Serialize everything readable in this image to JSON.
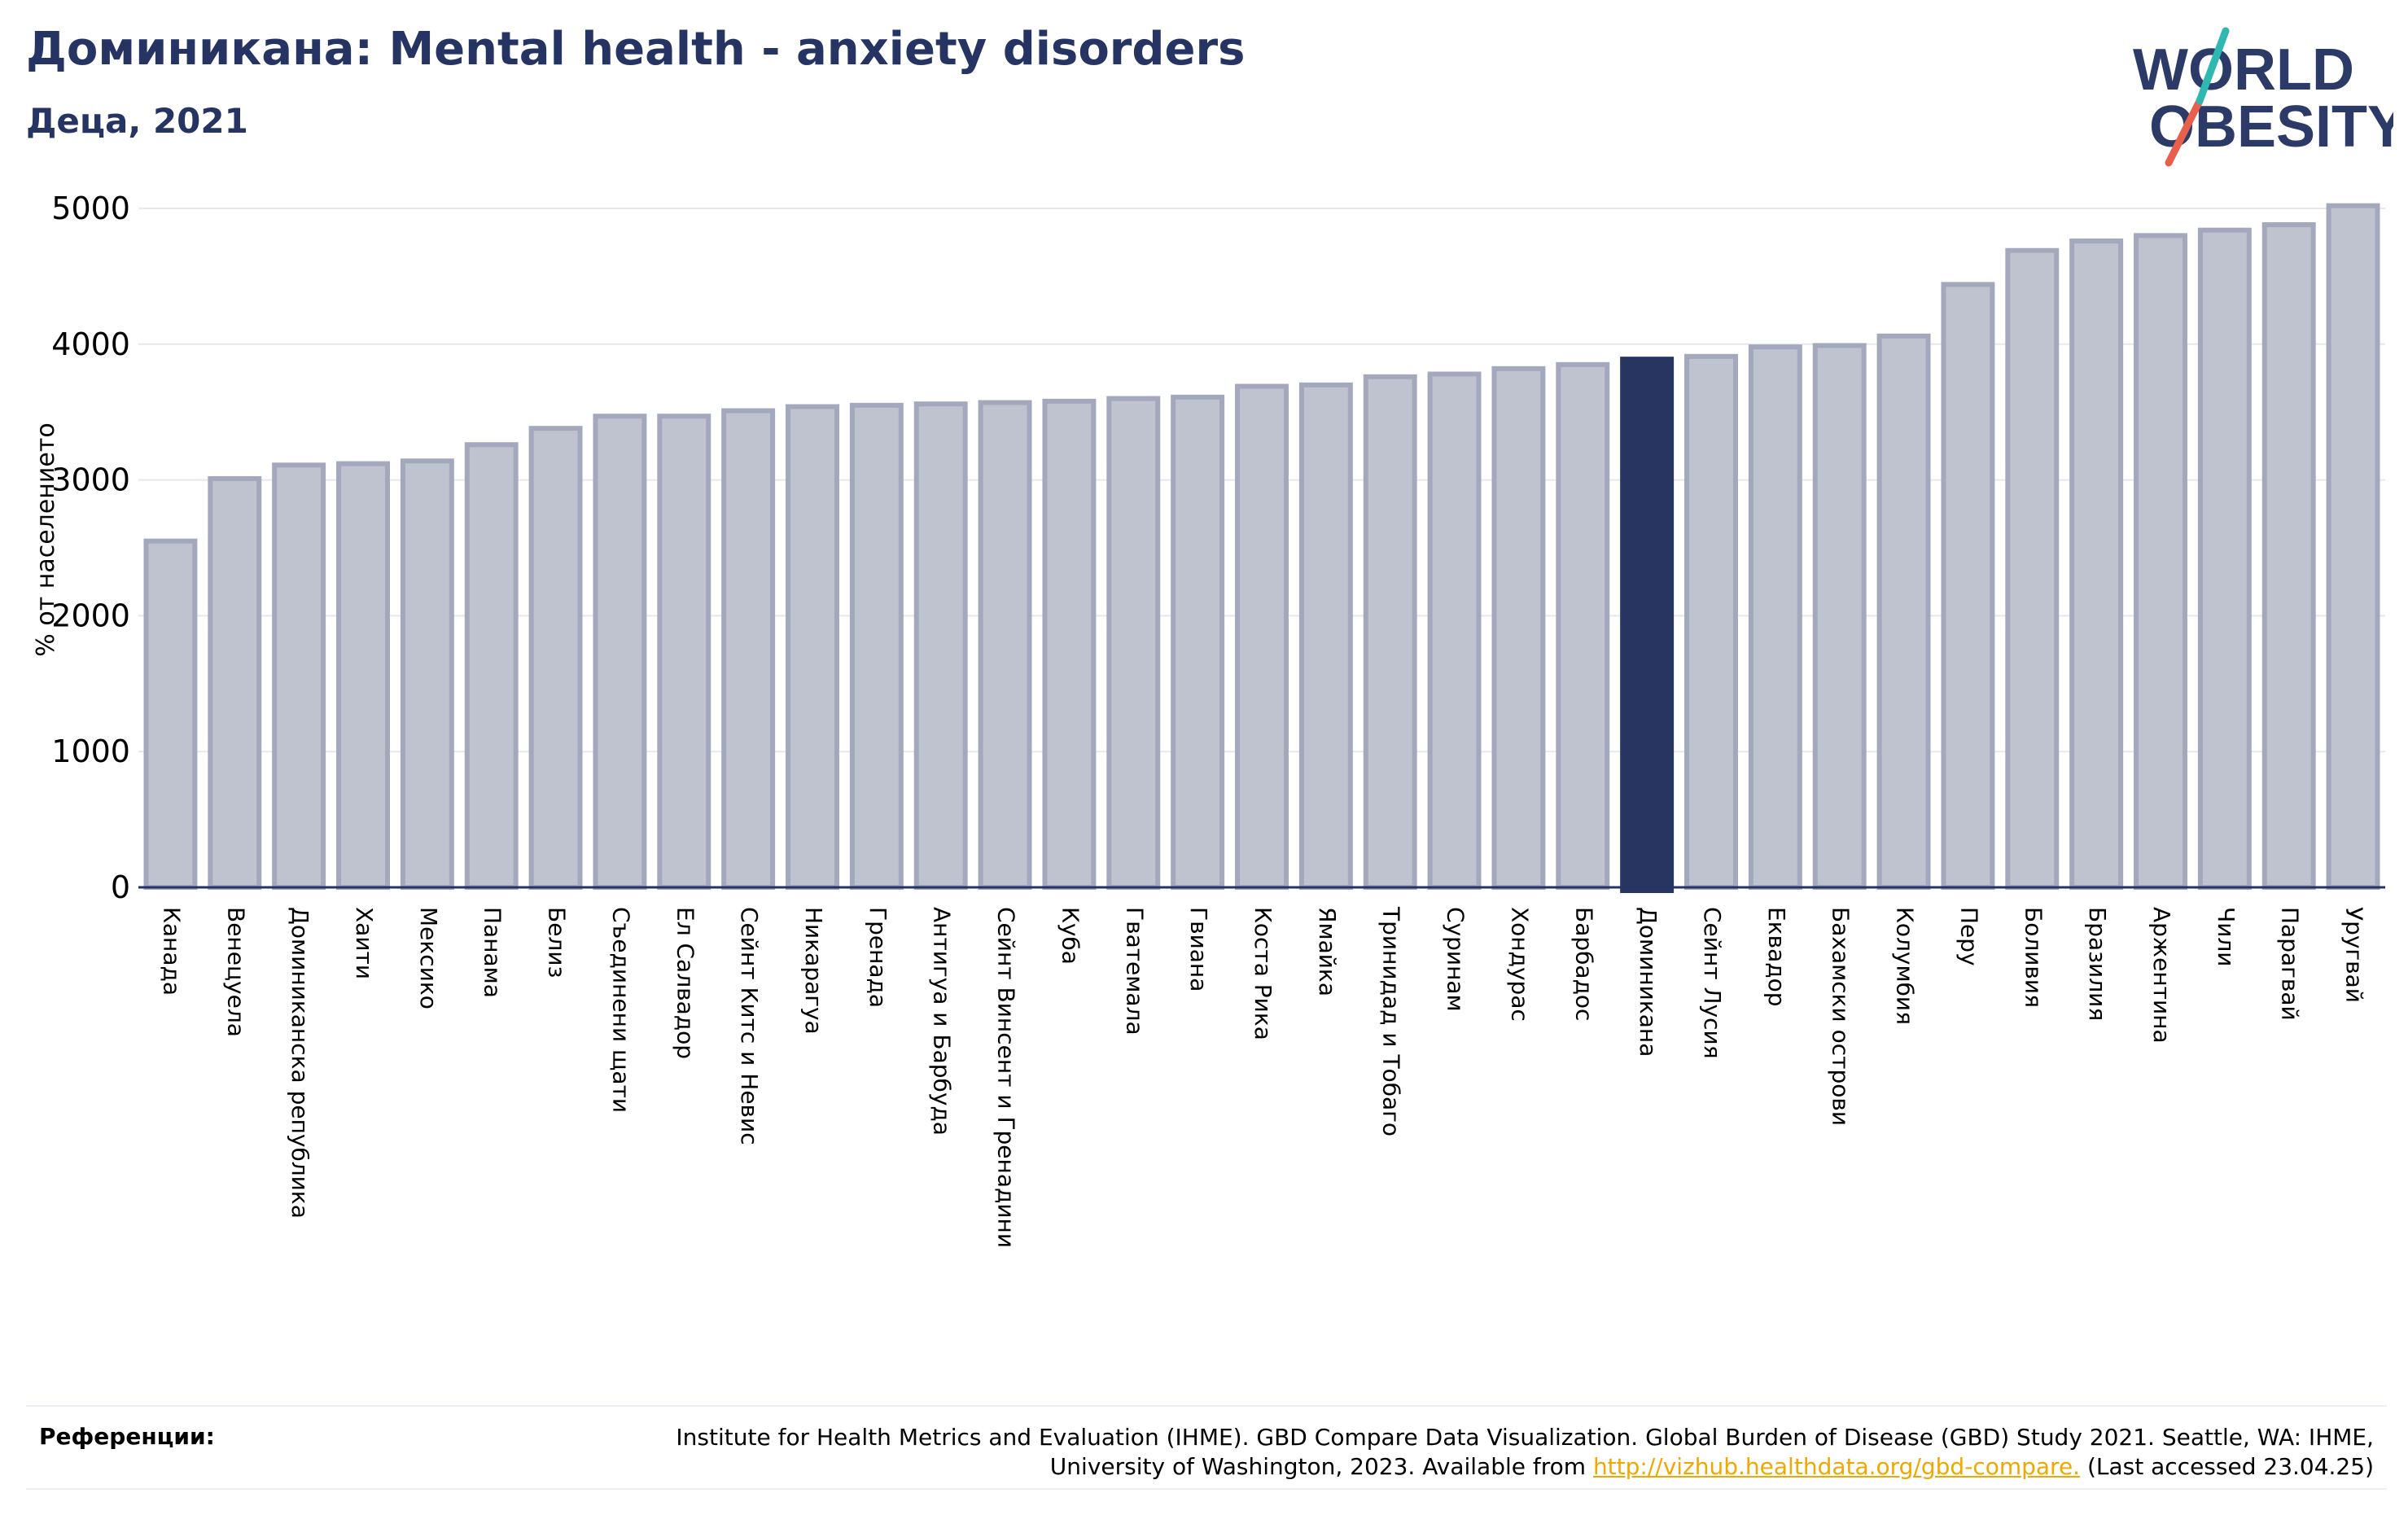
{
  "header": {
    "title": "Доминикана: Mental health - anxiety disorders",
    "subtitle": "Деца, 2021"
  },
  "logo": {
    "line1": "WORLD",
    "line2": "OBESITY"
  },
  "references": {
    "label": "Референции:",
    "text_before": "Institute for Health Metrics and Evaluation (IHME). GBD Compare Data Visualization. Global Burden of Disease (GBD) Study 2021. Seattle, WA: IHME, University of Washington, 2023. Available from ",
    "link": "http://vizhub.healthdata.org/gbd-compare.",
    "text_after": " (Last accessed 23.04.25)"
  },
  "colors": {
    "bar": "#bfc2cf",
    "bar_border": "#a3a8bc",
    "highlight": "#283561",
    "title": "#263463",
    "link": "#f0a800"
  },
  "chart_data": {
    "type": "bar",
    "title": "Доминикана: Mental health - anxiety disorders",
    "subtitle": "Деца, 2021",
    "ylabel": "% от населението",
    "xlabel": "",
    "ylim": [
      0,
      5000
    ],
    "yticks": [
      0,
      1000,
      2000,
      3000,
      4000,
      5000
    ],
    "grid": true,
    "highlight": "Доминикана",
    "categories": [
      "Канада",
      "Венецуела",
      "Доминиканска република",
      "Хаити",
      "Мексико",
      "Панама",
      "Белиз",
      "Съединени щати",
      "Ел Салвадор",
      "Сейнт Китс и Невис",
      "Никарагуа",
      "Гренада",
      "Антигуа и Барбуда",
      "Сейнт Винсент и Гренадини",
      "Куба",
      "Гватемала",
      "Гвиана",
      "Коста Рика",
      "Ямайка",
      "Тринидад и Тобаго",
      "Суринам",
      "Хондурас",
      "Барбадос",
      "Доминикана",
      "Сейнт Лусия",
      "Еквадор",
      "Бахамски острови",
      "Колумбия",
      "Перу",
      "Боливия",
      "Бразилия",
      "Аржентина",
      "Чили",
      "Парагвай",
      "Уругвай"
    ],
    "values": [
      2550,
      3010,
      3110,
      3120,
      3140,
      3260,
      3380,
      3470,
      3470,
      3510,
      3540,
      3550,
      3560,
      3570,
      3580,
      3600,
      3610,
      3690,
      3700,
      3760,
      3780,
      3820,
      3850,
      3890,
      3910,
      3980,
      3990,
      4060,
      4440,
      4690,
      4760,
      4800,
      4840,
      4880,
      5020
    ]
  }
}
